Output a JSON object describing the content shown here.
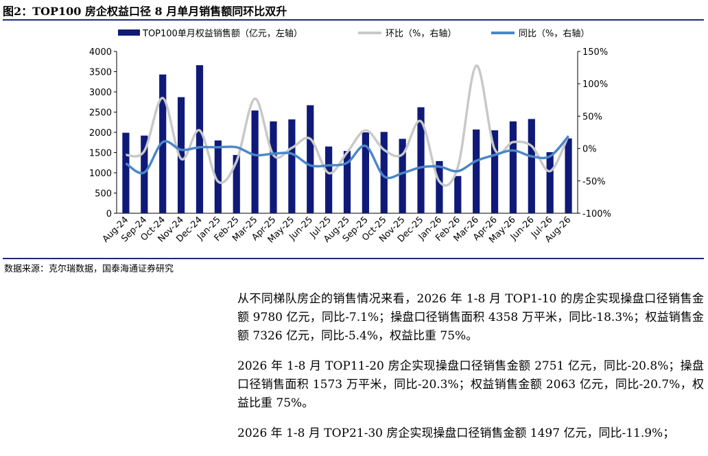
{
  "figure": {
    "title": "图2：TOP100 房企权益口径 8 月单月销售额同环比双升",
    "source": "数据来源：克尔瑞数据，国泰海通证券研究"
  },
  "chart_data": {
    "type": "bar",
    "categories": [
      "Aug-24",
      "Sep-24",
      "Oct-24",
      "Nov-24",
      "Dec-24",
      "Jan-25",
      "Feb-25",
      "Mar-25",
      "Apr-25",
      "May-25",
      "Jun-25",
      "Jul-25",
      "Aug-25",
      "Sep-25",
      "Oct-25",
      "Nov-25",
      "Dec-25",
      "Jan-26",
      "Feb-26",
      "Mar-26",
      "Apr-26",
      "May-26",
      "Jun-26",
      "Jul-26",
      "Aug-26"
    ],
    "series": [
      {
        "name": "TOP100单月权益销售额（亿元，左轴）",
        "type": "bar",
        "axis": "left",
        "color": "#0f1a78",
        "values": [
          1990,
          1920,
          3430,
          2870,
          3660,
          1800,
          1440,
          2540,
          2270,
          2320,
          2670,
          1650,
          1540,
          2000,
          2010,
          1840,
          2620,
          1290,
          920,
          2070,
          2050,
          2270,
          2330,
          1510,
          1850
        ]
      },
      {
        "name": "环比（%，右轴）",
        "type": "line",
        "axis": "right",
        "color": "#c8c8c8",
        "values": [
          -10,
          -4,
          78,
          -16,
          28,
          -51,
          -20,
          77,
          -10,
          1,
          15,
          -38,
          -6,
          28,
          -2,
          -9,
          42,
          -51,
          -29,
          128,
          -1,
          10,
          4,
          -35,
          20
        ]
      },
      {
        "name": "同比（%，右轴）",
        "type": "line",
        "axis": "right",
        "color": "#4a86c8",
        "values": [
          -23,
          -37,
          10,
          -2,
          2,
          2,
          2,
          -10,
          -8,
          -8,
          -26,
          -26,
          -22,
          4,
          -43,
          -38,
          -29,
          -28,
          -35,
          -19,
          -10,
          -3,
          -12,
          -12,
          19
        ]
      }
    ],
    "y_left": {
      "min": 0,
      "max": 4000,
      "ticks": [
        "0",
        "500",
        "1000",
        "1500",
        "2000",
        "2500",
        "3000",
        "3500",
        "4000"
      ]
    },
    "y_right": {
      "min": -100,
      "max": 150,
      "ticks": [
        "-100%",
        "-50%",
        "0%",
        "50%",
        "100%",
        "150%"
      ]
    },
    "legend_position": "top",
    "grid": false
  },
  "body": {
    "paragraphs": [
      "从不同梯队房企的销售情况来看，2026 年 1-8 月 TOP1-10 的房企实现操盘口径销售金额 9780 亿元，同比-7.1%；操盘口径销售面积 4358 万平米，同比-18.3%；权益销售金额 7326 亿元，同比-5.4%，权益比重 75%。",
      "2026 年 1-8 月 TOP11-20 房企实现操盘口径销售金额 2751 亿元，同比-20.8%；操盘口径销售面积 1573 万平米，同比-20.3%；权益销售金额 2063 亿元，同比-20.7%，权益比重 75%。",
      "2026 年 1-8 月 TOP21-30 房企实现操盘口径销售金额 1497 亿元，同比-11.9%；"
    ]
  }
}
